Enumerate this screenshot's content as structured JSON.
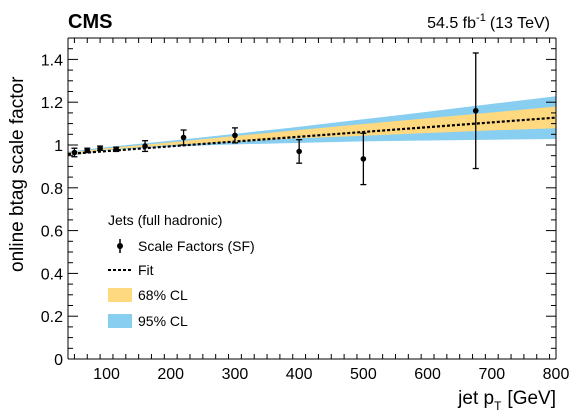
{
  "header": {
    "experiment": "CMS",
    "lumi_value": "54.5 fb",
    "lumi_exp": "-1",
    "energy": "(13 TeV)"
  },
  "legend": {
    "title": "Jets (full hadronic)",
    "entries": {
      "sf": "Scale Factors (SF)",
      "fit": "Fit",
      "cl68": "68% CL",
      "cl95": "95% CL"
    }
  },
  "axes": {
    "y_label": "online btag scale factor",
    "x_label_main": "jet p",
    "x_label_sub": "T",
    "x_label_unit": "[GeV]"
  },
  "colors": {
    "cl68": "#ffd97f",
    "cl95": "#87cef0",
    "points": "#000000",
    "fit": "#000000"
  },
  "chart_data": {
    "type": "scatter",
    "title": "",
    "xlabel": "jet p_T [GeV]",
    "ylabel": "online btag scale factor",
    "xlim": [
      40,
      800
    ],
    "ylim": [
      0,
      1.5
    ],
    "x_ticks": [
      100,
      200,
      300,
      400,
      500,
      600,
      700,
      800
    ],
    "y_ticks": [
      0,
      0.2,
      0.4,
      0.6,
      0.8,
      1,
      1.2,
      1.4
    ],
    "y_tick_labels": [
      "0",
      "0.2",
      "0.4",
      "0.6",
      "0.8",
      "1",
      "1.2",
      "1.4"
    ],
    "grid": false,
    "legend_position": "bottom-left",
    "series": [
      {
        "name": "Scale Factors (SF)",
        "x": [
          50,
          70,
          90,
          115,
          160,
          220,
          300,
          400,
          500,
          675
        ],
        "y": [
          0.965,
          0.975,
          0.985,
          0.98,
          0.995,
          1.035,
          1.045,
          0.97,
          0.935,
          1.16
        ],
        "y_err": [
          0.02,
          0.01,
          0.01,
          0.01,
          0.025,
          0.035,
          0.035,
          0.055,
          0.12,
          0.27
        ]
      },
      {
        "name": "Fit",
        "x": [
          40,
          800
        ],
        "y": [
          0.958,
          1.128
        ]
      }
    ],
    "bands": [
      {
        "name": "95% CL",
        "x": [
          40,
          100,
          200,
          300,
          400,
          500,
          600,
          700,
          800
        ],
        "lower": [
          0.948,
          0.975,
          0.993,
          1.003,
          1.01,
          1.017,
          1.021,
          1.025,
          1.028
        ],
        "upper": [
          0.968,
          0.99,
          1.02,
          1.052,
          1.085,
          1.12,
          1.155,
          1.192,
          1.228
        ]
      },
      {
        "name": "68% CL",
        "x": [
          40,
          100,
          200,
          300,
          400,
          500,
          600,
          700,
          800
        ],
        "lower": [
          0.952,
          0.978,
          1.0,
          1.015,
          1.032,
          1.043,
          1.056,
          1.068,
          1.078
        ],
        "upper": [
          0.964,
          0.985,
          1.012,
          1.042,
          1.07,
          1.098,
          1.125,
          1.152,
          1.18
        ]
      }
    ]
  }
}
